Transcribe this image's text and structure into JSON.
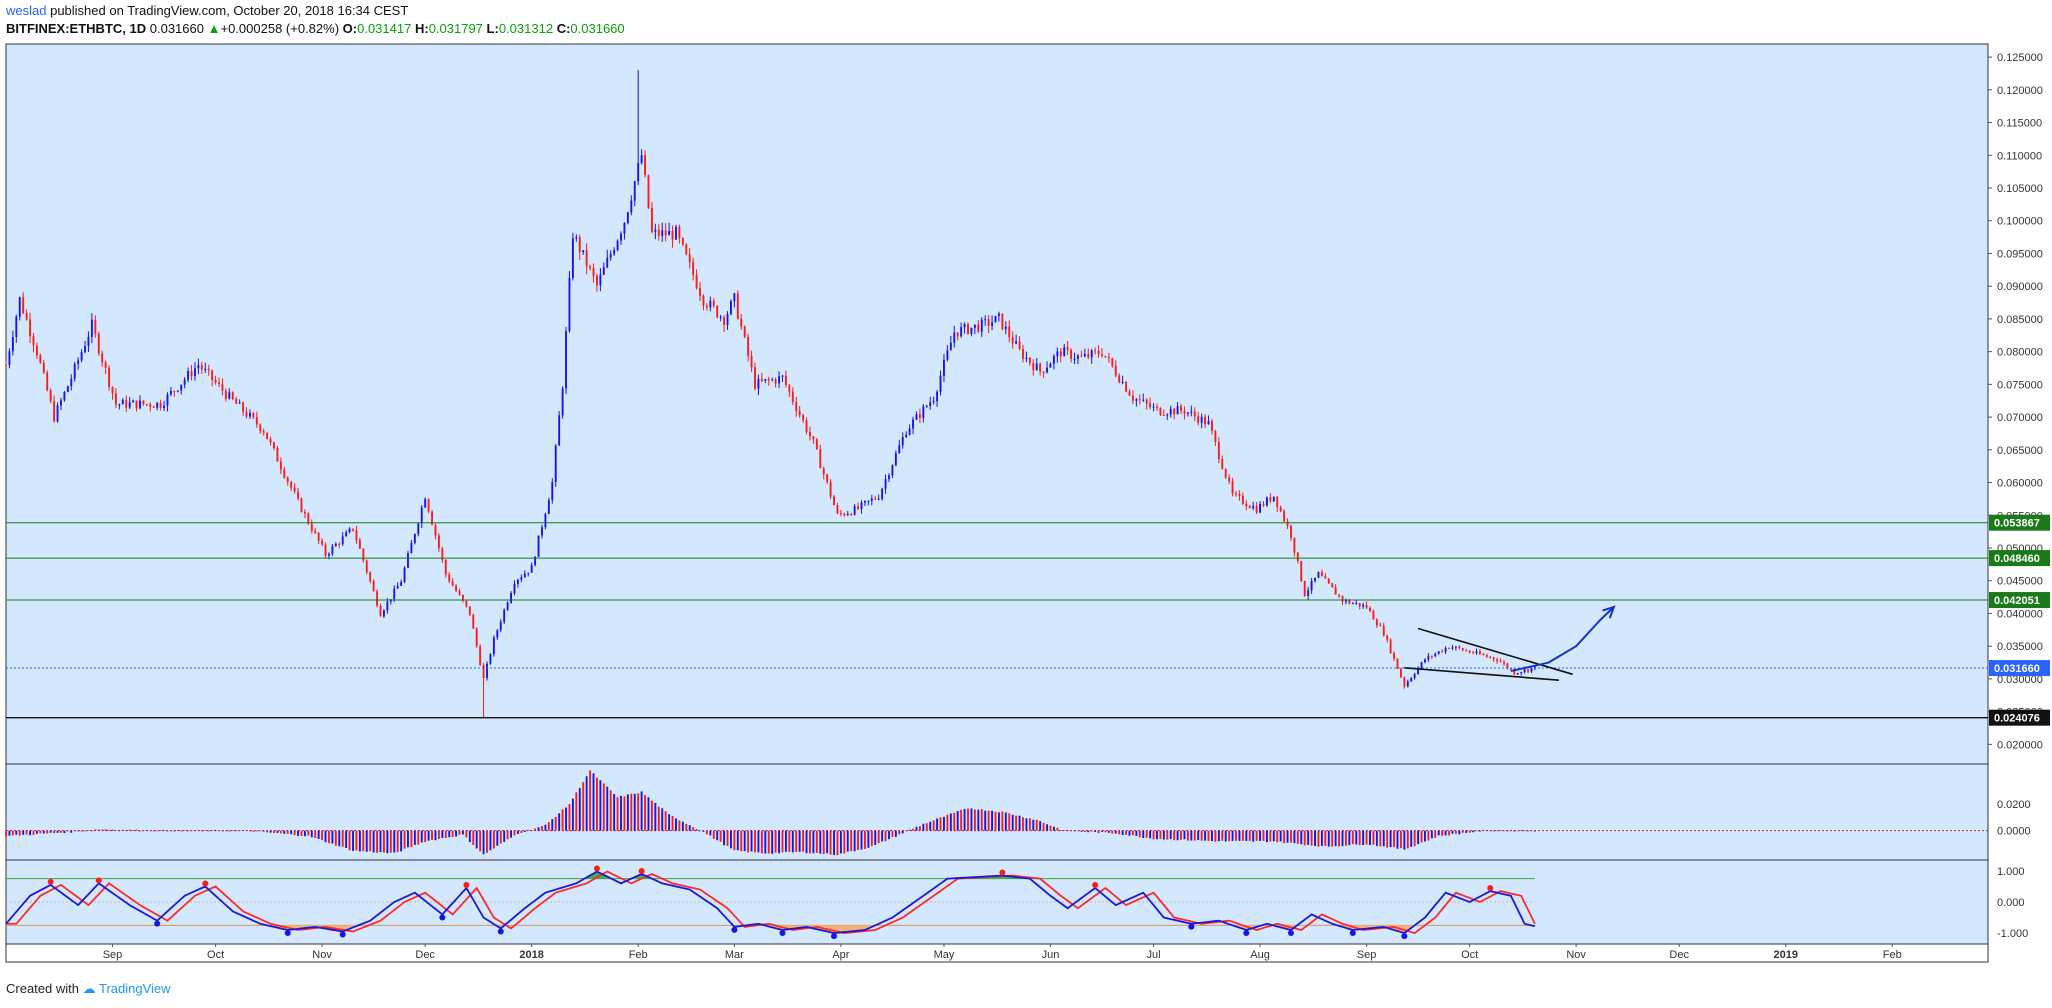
{
  "header": {
    "author": "weslad",
    "published_text": "published on TradingView.com, October 20, 2018 16:34 CEST",
    "symbol": "BITFINEX:ETHBTC, 1D",
    "last": "0.031660",
    "change": "+0.000258 (+0.82%)",
    "ohlc": {
      "o_label": "O:",
      "o": "0.031417",
      "h_label": "H:",
      "h": "0.031797",
      "l_label": "L:",
      "l": "0.031312",
      "c_label": "C:",
      "c": "0.031660"
    }
  },
  "footer": {
    "created_with": "Created with",
    "brand": "TradingView"
  },
  "colors": {
    "background": "#d3e7fd",
    "up": "#1515e6",
    "down": "#ff1a1a",
    "support": "#1a7a1a",
    "annotation": "#1533c6"
  },
  "chart_data": {
    "type": "candlestick",
    "symbol": "BITFINEX:ETHBTC",
    "interval": "1D",
    "price_axis": {
      "min": 0.017,
      "max": 0.127,
      "ticks": [
        "0.020000",
        "0.025000",
        "0.030000",
        "0.035000",
        "0.040000",
        "0.045000",
        "0.050000",
        "0.055000",
        "0.060000",
        "0.065000",
        "0.070000",
        "0.075000",
        "0.080000",
        "0.085000",
        "0.090000",
        "0.095000",
        "0.100000",
        "0.105000",
        "0.110000",
        "0.115000",
        "0.120000",
        "0.125000"
      ]
    },
    "time_axis": {
      "labels": [
        "Sep",
        "Oct",
        "Nov",
        "Dec",
        "2018",
        "Feb",
        "Mar",
        "Apr",
        "May",
        "Jun",
        "Jul",
        "Aug",
        "Sep",
        "Oct",
        "Nov",
        "Dec",
        "2019",
        "Feb"
      ]
    },
    "price_path": [
      [
        "2017-08-01",
        0.078
      ],
      [
        "2017-08-05",
        0.088
      ],
      [
        "2017-08-10",
        0.08
      ],
      [
        "2017-08-15",
        0.07
      ],
      [
        "2017-08-20",
        0.076
      ],
      [
        "2017-08-26",
        0.084
      ],
      [
        "2017-09-02",
        0.072
      ],
      [
        "2017-09-15",
        0.072
      ],
      [
        "2017-09-26",
        0.078
      ],
      [
        "2017-10-05",
        0.073
      ],
      [
        "2017-10-15",
        0.068
      ],
      [
        "2017-10-25",
        0.057
      ],
      [
        "2017-11-02",
        0.049
      ],
      [
        "2017-11-10",
        0.053
      ],
      [
        "2017-11-18",
        0.04
      ],
      [
        "2017-11-24",
        0.045
      ],
      [
        "2017-12-01",
        0.058
      ],
      [
        "2017-12-07",
        0.046
      ],
      [
        "2017-12-14",
        0.04
      ],
      [
        "2017-12-18",
        0.03
      ],
      [
        "2017-12-21",
        0.036
      ],
      [
        "2017-12-27",
        0.045
      ],
      [
        "2018-01-01",
        0.047
      ],
      [
        "2018-01-07",
        0.06
      ],
      [
        "2018-01-10",
        0.075
      ],
      [
        "2018-01-13",
        0.098
      ],
      [
        "2018-01-20",
        0.09
      ],
      [
        "2018-01-28",
        0.1
      ],
      [
        "2018-02-02",
        0.11
      ],
      [
        "2018-02-05",
        0.098
      ],
      [
        "2018-02-12",
        0.098
      ],
      [
        "2018-02-20",
        0.088
      ],
      [
        "2018-02-26",
        0.085
      ],
      [
        "2018-03-01",
        0.088
      ],
      [
        "2018-03-07",
        0.075
      ],
      [
        "2018-03-15",
        0.076
      ],
      [
        "2018-03-24",
        0.066
      ],
      [
        "2018-03-31",
        0.055
      ],
      [
        "2018-04-06",
        0.056
      ],
      [
        "2018-04-12",
        0.058
      ],
      [
        "2018-04-20",
        0.068
      ],
      [
        "2018-04-28",
        0.073
      ],
      [
        "2018-05-04",
        0.083
      ],
      [
        "2018-05-12",
        0.084
      ],
      [
        "2018-05-17",
        0.085
      ],
      [
        "2018-05-23",
        0.08
      ],
      [
        "2018-05-29",
        0.077
      ],
      [
        "2018-06-04",
        0.08
      ],
      [
        "2018-06-10",
        0.079
      ],
      [
        "2018-06-16",
        0.08
      ],
      [
        "2018-06-25",
        0.073
      ],
      [
        "2018-07-02",
        0.071
      ],
      [
        "2018-07-10",
        0.071
      ],
      [
        "2018-07-17",
        0.069
      ],
      [
        "2018-07-24",
        0.058
      ],
      [
        "2018-07-31",
        0.056
      ],
      [
        "2018-08-05",
        0.058
      ],
      [
        "2018-08-10",
        0.052
      ],
      [
        "2018-08-14",
        0.043
      ],
      [
        "2018-08-18",
        0.046
      ],
      [
        "2018-08-25",
        0.042
      ],
      [
        "2018-09-01",
        0.041
      ],
      [
        "2018-09-06",
        0.037
      ],
      [
        "2018-09-12",
        0.029
      ],
      [
        "2018-09-18",
        0.033
      ],
      [
        "2018-09-25",
        0.035
      ],
      [
        "2018-10-02",
        0.034
      ],
      [
        "2018-10-09",
        0.033
      ],
      [
        "2018-10-14",
        0.031
      ],
      [
        "2018-10-20",
        0.03166
      ]
    ],
    "wick_extremes": {
      "high": {
        "date": "2018-02-01",
        "value": 0.123
      },
      "low": {
        "date": "2017-12-18",
        "value": 0.024
      }
    },
    "levels": [
      {
        "label": "0.053867",
        "value": 0.053867,
        "color": "#1a7a1a"
      },
      {
        "label": "0.048460",
        "value": 0.04846,
        "color": "#1a7a1a"
      },
      {
        "label": "0.042051",
        "value": 0.042051,
        "color": "#1a7a1a"
      },
      {
        "label": "0.031660",
        "value": 0.03166,
        "color": "#2962ff"
      },
      {
        "label": "0.024076",
        "value": 0.024076,
        "color": "#111111"
      }
    ],
    "annotations": {
      "wedge_upper": [
        [
          "2018-09-16",
          0.0377
        ],
        [
          "2018-10-31",
          0.0307
        ]
      ],
      "wedge_lower": [
        [
          "2018-09-12",
          0.0317
        ],
        [
          "2018-10-27",
          0.0298
        ]
      ],
      "projection_arrow": [
        [
          "2018-10-13",
          0.0312
        ],
        [
          "2018-10-24",
          0.0325
        ],
        [
          "2018-11-01",
          0.035
        ],
        [
          "2018-11-08",
          0.039
        ],
        [
          "2018-11-12",
          0.041
        ]
      ]
    },
    "histogram": {
      "ticks": [
        "0.0200",
        "0.0000"
      ],
      "min": -0.022,
      "max": 0.05,
      "path": [
        [
          "2017-08-01",
          -0.004
        ],
        [
          "2017-08-20",
          -0.001
        ],
        [
          "2017-08-28",
          0.001
        ],
        [
          "2017-09-15",
          0.0
        ],
        [
          "2017-10-10",
          0.0
        ],
        [
          "2017-10-28",
          -0.004
        ],
        [
          "2017-11-10",
          -0.015
        ],
        [
          "2017-11-22",
          -0.017
        ],
        [
          "2017-12-01",
          -0.008
        ],
        [
          "2017-12-12",
          -0.003
        ],
        [
          "2017-12-18",
          -0.018
        ],
        [
          "2017-12-28",
          -0.002
        ],
        [
          "2018-01-05",
          0.004
        ],
        [
          "2018-01-12",
          0.02
        ],
        [
          "2018-01-18",
          0.045
        ],
        [
          "2018-01-26",
          0.025
        ],
        [
          "2018-02-02",
          0.029
        ],
        [
          "2018-02-10",
          0.012
        ],
        [
          "2018-02-20",
          -0.001
        ],
        [
          "2018-03-01",
          -0.015
        ],
        [
          "2018-03-10",
          -0.017
        ],
        [
          "2018-03-20",
          -0.016
        ],
        [
          "2018-03-31",
          -0.018
        ],
        [
          "2018-04-10",
          -0.012
        ],
        [
          "2018-04-25",
          0.005
        ],
        [
          "2018-05-08",
          0.017
        ],
        [
          "2018-05-18",
          0.014
        ],
        [
          "2018-05-28",
          0.008
        ],
        [
          "2018-06-05",
          0.0
        ],
        [
          "2018-06-20",
          -0.002
        ],
        [
          "2018-07-01",
          -0.006
        ],
        [
          "2018-07-20",
          -0.008
        ],
        [
          "2018-08-05",
          -0.008
        ],
        [
          "2018-08-20",
          -0.012
        ],
        [
          "2018-09-01",
          -0.01
        ],
        [
          "2018-09-12",
          -0.014
        ],
        [
          "2018-09-22",
          -0.004
        ],
        [
          "2018-10-05",
          0.0
        ],
        [
          "2018-10-20",
          0.0
        ]
      ]
    },
    "oscillator": {
      "ticks": [
        "1.000",
        "0.000",
        "-1.000"
      ],
      "min": -1.35,
      "max": 1.35,
      "overbought": 0.75,
      "oversold": -0.75,
      "path": [
        [
          "2017-08-01",
          -0.7
        ],
        [
          "2017-08-08",
          0.2
        ],
        [
          "2017-08-14",
          0.55
        ],
        [
          "2017-08-22",
          -0.1
        ],
        [
          "2017-08-28",
          0.6
        ],
        [
          "2017-09-06",
          -0.1
        ],
        [
          "2017-09-14",
          -0.6
        ],
        [
          "2017-09-22",
          0.2
        ],
        [
          "2017-09-28",
          0.5
        ],
        [
          "2017-10-06",
          -0.3
        ],
        [
          "2017-10-14",
          -0.7
        ],
        [
          "2017-10-22",
          -0.9
        ],
        [
          "2017-10-30",
          -0.8
        ],
        [
          "2017-11-07",
          -0.95
        ],
        [
          "2017-11-15",
          -0.6
        ],
        [
          "2017-11-22",
          0.0
        ],
        [
          "2017-11-28",
          0.3
        ],
        [
          "2017-12-06",
          -0.4
        ],
        [
          "2017-12-13",
          0.45
        ],
        [
          "2017-12-18",
          -0.5
        ],
        [
          "2017-12-23",
          -0.85
        ],
        [
          "2017-12-30",
          -0.2
        ],
        [
          "2018-01-05",
          0.3
        ],
        [
          "2018-01-14",
          0.6
        ],
        [
          "2018-01-20",
          0.98
        ],
        [
          "2018-01-27",
          0.6
        ],
        [
          "2018-02-02",
          0.9
        ],
        [
          "2018-02-08",
          0.6
        ],
        [
          "2018-02-16",
          0.4
        ],
        [
          "2018-02-24",
          -0.2
        ],
        [
          "2018-03-01",
          -0.8
        ],
        [
          "2018-03-08",
          -0.7
        ],
        [
          "2018-03-15",
          -0.9
        ],
        [
          "2018-03-22",
          -0.8
        ],
        [
          "2018-03-30",
          -1.0
        ],
        [
          "2018-04-08",
          -0.9
        ],
        [
          "2018-04-16",
          -0.5
        ],
        [
          "2018-04-25",
          0.2
        ],
        [
          "2018-05-02",
          0.75
        ],
        [
          "2018-05-10",
          0.8
        ],
        [
          "2018-05-18",
          0.85
        ],
        [
          "2018-05-26",
          0.75
        ],
        [
          "2018-06-01",
          0.2
        ],
        [
          "2018-06-06",
          -0.2
        ],
        [
          "2018-06-14",
          0.45
        ],
        [
          "2018-06-20",
          -0.1
        ],
        [
          "2018-06-28",
          0.3
        ],
        [
          "2018-07-04",
          -0.5
        ],
        [
          "2018-07-12",
          -0.7
        ],
        [
          "2018-07-20",
          -0.6
        ],
        [
          "2018-07-28",
          -0.9
        ],
        [
          "2018-08-03",
          -0.7
        ],
        [
          "2018-08-10",
          -0.9
        ],
        [
          "2018-08-16",
          -0.4
        ],
        [
          "2018-08-22",
          -0.7
        ],
        [
          "2018-08-28",
          -0.9
        ],
        [
          "2018-09-06",
          -0.8
        ],
        [
          "2018-09-12",
          -1.0
        ],
        [
          "2018-09-18",
          -0.5
        ],
        [
          "2018-09-24",
          0.3
        ],
        [
          "2018-10-01",
          0.0
        ],
        [
          "2018-10-07",
          0.35
        ],
        [
          "2018-10-13",
          0.2
        ],
        [
          "2018-10-17",
          -0.7
        ],
        [
          "2018-10-20",
          -0.78
        ]
      ]
    }
  }
}
